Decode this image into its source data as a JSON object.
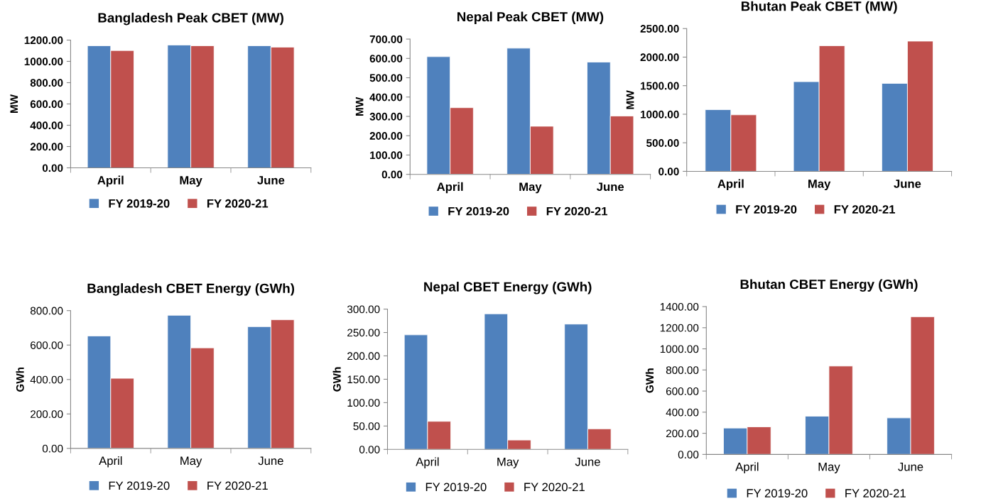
{
  "chart_data": [
    {
      "type": "bar",
      "title": "Bangladesh Peak CBET (MW)",
      "ylabel": "MW",
      "categories": [
        "April",
        "May",
        "June"
      ],
      "series": [
        {
          "name": "FY 2019-20",
          "color": "#4f81bd",
          "values": [
            1147,
            1154,
            1147
          ]
        },
        {
          "name": "FY 2020-21",
          "color": "#c0504d",
          "values": [
            1102,
            1147,
            1134
          ]
        }
      ],
      "ylim": [
        0,
        1200
      ],
      "yticks": [
        {
          "value": 0,
          "label": "0.00"
        },
        {
          "value": 200,
          "label": "200.00"
        },
        {
          "value": 400,
          "label": "400.00"
        },
        {
          "value": 600,
          "label": "600.00"
        },
        {
          "value": 800,
          "label": "800.00"
        },
        {
          "value": 1000,
          "label": "1000.00"
        },
        {
          "value": 1200,
          "label": "1200.00"
        }
      ],
      "grid": false,
      "legend": "bottom"
    },
    {
      "type": "bar",
      "title": "Nepal Peak CBET (MW)",
      "ylabel": "MW",
      "categories": [
        "April",
        "May",
        "June"
      ],
      "series": [
        {
          "name": "FY 2019-20",
          "color": "#4f81bd",
          "values": [
            609,
            653,
            581
          ]
        },
        {
          "name": "FY 2020-21",
          "color": "#c0504d",
          "values": [
            345,
            249,
            302
          ]
        }
      ],
      "ylim": [
        0,
        700
      ],
      "yticks": [
        {
          "value": 0,
          "label": "0.00"
        },
        {
          "value": 100,
          "label": "100.00"
        },
        {
          "value": 200,
          "label": "200.00"
        },
        {
          "value": 300,
          "label": "300.00"
        },
        {
          "value": 400,
          "label": "400.00"
        },
        {
          "value": 500,
          "label": "500.00"
        },
        {
          "value": 600,
          "label": "600.00"
        },
        {
          "value": 700,
          "label": "700.00"
        }
      ],
      "grid": false,
      "legend": "bottom"
    },
    {
      "type": "bar",
      "title": "Bhutan Peak CBET (MW)",
      "ylabel": "MW",
      "categories": [
        "April",
        "May",
        "June"
      ],
      "series": [
        {
          "name": "FY 2019-20",
          "color": "#4f81bd",
          "values": [
            1080,
            1570,
            1540
          ]
        },
        {
          "name": "FY 2020-21",
          "color": "#c0504d",
          "values": [
            990,
            2200,
            2280
          ]
        }
      ],
      "ylim": [
        0,
        2500
      ],
      "yticks": [
        {
          "value": 0,
          "label": "0.00"
        },
        {
          "value": 500,
          "label": "500.00"
        },
        {
          "value": 1000,
          "label": "1000.00"
        },
        {
          "value": 1500,
          "label": "1500.00"
        },
        {
          "value": 2000,
          "label": "2000.00"
        },
        {
          "value": 2500,
          "label": "2500.00"
        }
      ],
      "grid": false,
      "legend": "bottom"
    },
    {
      "type": "bar",
      "title": "Bangladesh CBET Energy (GWh)",
      "ylabel": "GWh",
      "categories": [
        "April",
        "May",
        "June"
      ],
      "series": [
        {
          "name": "FY 2019-20",
          "color": "#4f81bd",
          "values": [
            653,
            773,
            707
          ]
        },
        {
          "name": "FY 2020-21",
          "color": "#c0504d",
          "values": [
            407,
            584,
            747
          ]
        }
      ],
      "ylim": [
        0,
        800
      ],
      "yticks": [
        {
          "value": 0,
          "label": "0.00"
        },
        {
          "value": 200,
          "label": "200.00"
        },
        {
          "value": 400,
          "label": "400.00"
        },
        {
          "value": 600,
          "label": "600.00"
        },
        {
          "value": 800,
          "label": "800.00"
        }
      ],
      "grid": false,
      "legend": "bottom"
    },
    {
      "type": "bar",
      "title": "Nepal CBET Energy (GWh)",
      "ylabel": "GWh",
      "categories": [
        "April",
        "May",
        "June"
      ],
      "series": [
        {
          "name": "FY 2019-20",
          "color": "#4f81bd",
          "values": [
            245,
            290,
            268
          ]
        },
        {
          "name": "FY 2020-21",
          "color": "#c0504d",
          "values": [
            60,
            20,
            44
          ]
        }
      ],
      "ylim": [
        0,
        300
      ],
      "yticks": [
        {
          "value": 0,
          "label": "0.00"
        },
        {
          "value": 50,
          "label": "50.00"
        },
        {
          "value": 100,
          "label": "100.00"
        },
        {
          "value": 150,
          "label": "150.00"
        },
        {
          "value": 200,
          "label": "200.00"
        },
        {
          "value": 250,
          "label": "250.00"
        },
        {
          "value": 300,
          "label": "300.00"
        }
      ],
      "grid": false,
      "legend": "bottom"
    },
    {
      "type": "bar",
      "title": "Bhutan CBET Energy (GWh)",
      "ylabel": "GWh",
      "categories": [
        "April",
        "May",
        "June"
      ],
      "series": [
        {
          "name": "FY 2019-20",
          "color": "#4f81bd",
          "values": [
            250,
            362,
            346
          ]
        },
        {
          "name": "FY 2020-21",
          "color": "#c0504d",
          "values": [
            261,
            837,
            1304
          ]
        }
      ],
      "ylim": [
        0,
        1400
      ],
      "yticks": [
        {
          "value": 0,
          "label": "0.00"
        },
        {
          "value": 200,
          "label": "200.00"
        },
        {
          "value": 400,
          "label": "400.00"
        },
        {
          "value": 600,
          "label": "600.00"
        },
        {
          "value": 800,
          "label": "800.00"
        },
        {
          "value": 1000,
          "label": "1000.00"
        },
        {
          "value": 1200,
          "label": "1200.00"
        },
        {
          "value": 1400,
          "label": "1400.00"
        }
      ],
      "grid": false,
      "legend": "bottom"
    }
  ]
}
